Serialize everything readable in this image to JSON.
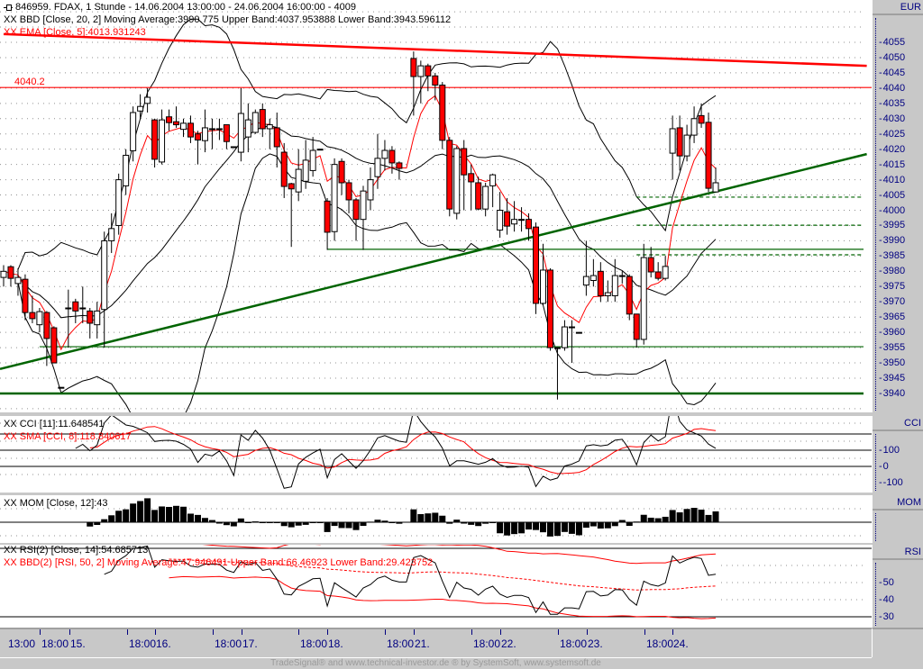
{
  "header": {
    "title": "846959. FDAX, 1 Stunde - 14.06.2004 13:00:00 - 24.06.2004 16:00:00 - 4009",
    "bbd_legend": "XX BBD [Close, 20, 2] Moving Average:3990.775 Upper Band:4037.953888 Lower Band:3943.596112",
    "ema_legend": "XX EMA [Close, 5]:4013.931243",
    "price_marker": "4040.2"
  },
  "cci_panel": {
    "legend1": "XX CCI [11]:11.648541",
    "legend2": "XX SMA [CCI, 8]:118.840617",
    "axis_title": "CCI",
    "axis_labels": [
      "100",
      "0",
      "-100"
    ]
  },
  "mom_panel": {
    "legend": "XX MOM [Close, 12]:43",
    "axis_title": "MOM"
  },
  "rsi_panel": {
    "legend1": "XX RSI(2) [Close, 14]:54.685713",
    "legend2": "XX BBD(2) [RSI, 50, 2] Moving Average:47.946491 Upper Band:66.46923 Lower Band:29.423752",
    "axis_title": "RSI",
    "axis_labels": [
      "50",
      "40",
      "30"
    ]
  },
  "price_axis": {
    "title": "EUR",
    "labels": [
      "4055",
      "4050",
      "4045",
      "4040",
      "4035",
      "4030",
      "4025",
      "4020",
      "4015",
      "4010",
      "4005",
      "4000",
      "3995",
      "3990",
      "3985",
      "3980",
      "3975",
      "3970",
      "3965",
      "3960",
      "3955",
      "3950",
      "3945",
      "3940"
    ]
  },
  "time_axis": [
    "13:00",
    "18:00",
    "15.",
    "18:00",
    "16.",
    "18:00",
    "17.",
    "18:00",
    "18.",
    "18:00",
    "21.",
    "18:00",
    "22.",
    "18:00",
    "23.",
    "18:00",
    "24."
  ],
  "footer": "TradeSignal® and www.technical-investor.de ® by  SystemSoft, www.systemsoft.de",
  "colors": {
    "up_fill": "#ffffff",
    "down_fill": "#ff0000",
    "ema": "#ff0000",
    "bands": "#000000",
    "trend_green": "#006400",
    "resistance_red": "#ff0000",
    "axis_text": "#000080"
  },
  "chart_data": {
    "type": "candlestick",
    "title": "846959. FDAX, 1 Stunde",
    "ylim": [
      3935,
      4060
    ],
    "ohlc_format": [
      "open",
      "high",
      "low",
      "close"
    ],
    "bars": [
      [
        3978,
        3982,
        3975,
        3980
      ],
      [
        3981.5,
        3982,
        3975,
        3977.7
      ],
      [
        3976,
        3981,
        3972,
        3978
      ],
      [
        3977.4,
        3979,
        3964,
        3966.5
      ],
      [
        3966.5,
        3972,
        3963,
        3964.5
      ],
      [
        3962.5,
        3968,
        3960,
        3966.8
      ],
      [
        3966.5,
        3967,
        3949,
        3958
      ],
      [
        3961.5,
        3962,
        3950,
        3950
      ],
      [
        3942,
        3942,
        3942,
        3942
      ],
      [
        3968,
        3974,
        3955,
        3968
      ],
      [
        3970,
        3971,
        3963,
        3967
      ],
      [
        3968,
        3975,
        3963,
        3968
      ],
      [
        3967,
        3968,
        3958,
        3963
      ],
      [
        3962.5,
        3970,
        3958,
        3967
      ],
      [
        3967.5,
        3993,
        3955,
        3990
      ],
      [
        3990,
        3999,
        3986,
        3994
      ],
      [
        3995,
        4012,
        3992,
        4010
      ],
      [
        4008,
        4020,
        4005,
        4018
      ],
      [
        4019.5,
        4034,
        4016,
        4032
      ],
      [
        4032.5,
        4038,
        4030,
        4034
      ],
      [
        4035,
        4040,
        4032,
        4037
      ],
      [
        4029.6,
        4030,
        4014,
        4016.7
      ],
      [
        4015.8,
        4033,
        4015,
        4029.6
      ],
      [
        4030.6,
        4033,
        4026,
        4028.7
      ],
      [
        4029,
        4034,
        4027,
        4028
      ],
      [
        4026.5,
        4030,
        4024,
        4028.5
      ],
      [
        4028.5,
        4031,
        4022,
        4024
      ],
      [
        4025,
        4026,
        4015,
        4023
      ],
      [
        4022.8,
        4033,
        4019,
        4027
      ],
      [
        4026.7,
        4030,
        4020,
        4026.7
      ],
      [
        4026.7,
        4030,
        4023,
        4026.7
      ],
      [
        4028,
        4028,
        4020,
        4022.5
      ],
      [
        4020.8,
        4020.8,
        4020.8,
        4020.8
      ],
      [
        4019,
        4040,
        4016,
        4031.7
      ],
      [
        4024,
        4035,
        4019,
        4029.6
      ],
      [
        4025.5,
        4033,
        4025,
        4032
      ],
      [
        4033,
        4035,
        4024,
        4026.7
      ],
      [
        4026.7,
        4030,
        4020,
        4028
      ],
      [
        4027,
        4032,
        4014,
        4020.8
      ],
      [
        4019,
        4022,
        4004,
        4007.8
      ],
      [
        4008.7,
        4009,
        3988,
        4007
      ],
      [
        4006,
        4020,
        4003,
        4013.4
      ],
      [
        4009.5,
        4023,
        4007,
        4016.4
      ],
      [
        4013,
        4024,
        4011,
        4019.6
      ],
      [
        4020,
        4020,
        4020,
        4020
      ],
      [
        4003,
        4004,
        3987,
        3992.8
      ],
      [
        3993,
        4017,
        3990,
        4015
      ],
      [
        4016,
        4017,
        4005,
        4009
      ],
      [
        4009,
        4010,
        3999,
        4003.4
      ],
      [
        4003.4,
        4004,
        3990,
        3997
      ],
      [
        3997,
        4008,
        3987,
        4006.3
      ],
      [
        4003.4,
        4014,
        4000,
        4010
      ],
      [
        4011,
        4025,
        4007,
        4017
      ],
      [
        4017,
        4023,
        4013,
        4019.6
      ],
      [
        4019.6,
        4021,
        4012,
        4015.5
      ],
      [
        4015.5,
        4016,
        4010,
        4013.7
      ],
      null,
      [
        4049.7,
        4052,
        4031,
        4043.8
      ],
      [
        4043.8,
        4049,
        4035,
        4047.3
      ],
      [
        4047.3,
        4048,
        4039,
        4044
      ],
      [
        4044,
        4045,
        4036,
        4041
      ],
      [
        4041,
        4042,
        4020,
        4022.9
      ],
      [
        4022.9,
        4024,
        3998,
        4000.4
      ],
      [
        3999,
        4021,
        3997,
        4020.2
      ],
      [
        4020.2,
        4023,
        4000,
        4011.6
      ],
      [
        4012,
        4015,
        4000,
        4009.3
      ],
      [
        4009,
        4011,
        4000,
        4000.4
      ],
      [
        4000.4,
        4009,
        3998,
        4007.8
      ],
      [
        4008,
        4012,
        4001,
        4011.6
      ],
      [
        3993.5,
        4006,
        3991,
        4000
      ],
      [
        3999.5,
        4004,
        3992,
        3994.8
      ],
      [
        3995.5,
        4003,
        3993,
        3997
      ],
      [
        3997,
        4001,
        3993,
        3997
      ],
      [
        3997,
        3999,
        3990,
        3994
      ],
      [
        3994.5,
        3996,
        3966,
        3969.5
      ],
      [
        3969.5,
        3989,
        3969,
        3980.4
      ],
      [
        3980.4,
        3981,
        3954,
        3955
      ],
      [
        3955,
        3955,
        3938,
        3955
      ],
      [
        3955,
        3964,
        3954,
        3961.8
      ],
      [
        3961.8,
        3964,
        3950,
        3961.8
      ],
      [
        3960,
        3960,
        3960,
        3960
      ],
      [
        3975.5,
        3990,
        3972,
        3978.3
      ],
      [
        3977,
        3984,
        3975,
        3978.6
      ],
      [
        3980,
        3983,
        3970,
        3972
      ],
      [
        3972,
        3977,
        3970,
        3973
      ],
      [
        3972,
        3984,
        3970,
        3978.6
      ],
      [
        3978.6,
        3980,
        3976,
        3978.3
      ],
      [
        3978.3,
        3979,
        3964,
        3966
      ],
      [
        3966,
        3966,
        3955,
        3957.7
      ],
      [
        3957.7,
        3989,
        3956,
        3984.5
      ],
      [
        3984.5,
        3988,
        3978,
        3979.8
      ],
      [
        3979.8,
        3983,
        3977,
        3977.7
      ],
      [
        3977.7,
        3985,
        3977,
        3981.6
      ],
      [
        4018.7,
        4031,
        4010,
        4026.7
      ],
      [
        4027,
        4031,
        4013,
        4017.8
      ],
      [
        4017.8,
        4028,
        4016,
        4024.6
      ],
      [
        4024.6,
        4034,
        4022,
        4030
      ],
      [
        4031,
        4035,
        4027,
        4028.5
      ],
      [
        4028.8,
        4032,
        4006,
        4007.2
      ],
      [
        4006,
        4014,
        4006,
        4009
      ]
    ],
    "indicators": {
      "ema_period": 5,
      "bb_period": 20,
      "bb_dev": 2,
      "cci_period": 11,
      "cci_sma": 8,
      "mom_period": 12,
      "rsi_period": 14,
      "rsi_bb_period": 50,
      "rsi_bb_dev": 2
    },
    "drawn_lines": [
      {
        "name": "resistance-trendline",
        "kind": "trend",
        "from_bar": 0,
        "from_price": 4057.7,
        "to_bar": 120,
        "to_price": 4047.3,
        "color": "#ff0000",
        "weight": "thick"
      },
      {
        "name": "marker-line-4040",
        "kind": "horizontal",
        "price": 4040.2,
        "from_bar": -1,
        "color": "#ff0000",
        "weight": "thin"
      },
      {
        "name": "support-trendline",
        "kind": "trend",
        "from_bar": -0.5,
        "from_price": 3948,
        "to_bar": 120,
        "to_price": 4018.4,
        "color": "#006400",
        "weight": "thick"
      },
      {
        "name": "horizontal-3987",
        "kind": "horizontal",
        "price": 3987.2,
        "from_bar": 45,
        "color": "#006400",
        "weight": "thin"
      },
      {
        "name": "horizontal-3955",
        "kind": "horizontal",
        "price": 3955.3,
        "from_bar": 5,
        "color": "#006400",
        "weight": "thin"
      },
      {
        "name": "horizontal-3940",
        "kind": "horizontal",
        "price": 3940,
        "from_bar": -1,
        "color": "#006400",
        "weight": "thick"
      },
      {
        "name": "dashed-4004",
        "kind": "horizontal",
        "price": 4004.3,
        "from_bar": 88,
        "color": "#006400",
        "weight": "dashed"
      },
      {
        "name": "dashed-3995",
        "kind": "horizontal",
        "price": 3995.1,
        "from_bar": 88,
        "color": "#006400",
        "weight": "dashed"
      },
      {
        "name": "dashed-3985",
        "kind": "horizontal",
        "price": 3985.4,
        "from_bar": 88,
        "color": "#006400",
        "weight": "dashed"
      }
    ],
    "cci_levels": [
      100,
      0,
      -100
    ],
    "rsi_levels": [
      70,
      30
    ]
  }
}
